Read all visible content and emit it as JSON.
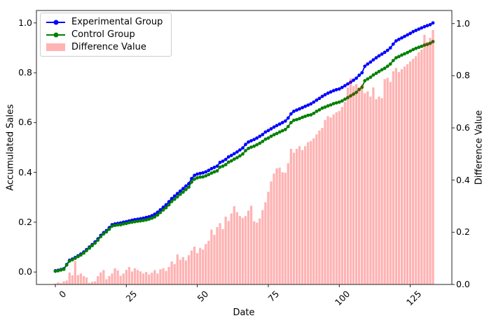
{
  "chart_data": {
    "type": "line",
    "note": "dual-axis figure: two cumulative lines on left axis, bar series on right axis; x is day index 0..133",
    "x_start": 0,
    "x_step": 1,
    "xlabel": "Date",
    "ylabel_left": "Accumulated Sales",
    "ylabel_right": "Difference Value",
    "xticks": [
      0,
      25,
      50,
      75,
      100,
      125
    ],
    "yticks_left": [
      0.0,
      0.2,
      0.4,
      0.6,
      0.8,
      1.0
    ],
    "yticks_right": [
      0.0,
      0.2,
      0.4,
      0.6,
      0.8,
      1.0
    ],
    "xlim": [
      -6.65,
      139.65
    ],
    "ylim_left": [
      -0.05,
      1.05
    ],
    "ylim_right": [
      0.0,
      1.05
    ],
    "grid": false,
    "legend_position": "upper-left",
    "series": [
      {
        "name": "Experimental Group",
        "color": "#0000ff",
        "axis": "left",
        "marker": "circle",
        "values": [
          0.005,
          0.007,
          0.01,
          0.013,
          0.03,
          0.047,
          0.052,
          0.058,
          0.065,
          0.072,
          0.08,
          0.09,
          0.1,
          0.11,
          0.121,
          0.133,
          0.147,
          0.158,
          0.166,
          0.178,
          0.19,
          0.193,
          0.195,
          0.197,
          0.2,
          0.202,
          0.205,
          0.208,
          0.21,
          0.212,
          0.214,
          0.216,
          0.219,
          0.222,
          0.226,
          0.232,
          0.24,
          0.25,
          0.26,
          0.27,
          0.282,
          0.295,
          0.305,
          0.315,
          0.325,
          0.335,
          0.345,
          0.355,
          0.375,
          0.388,
          0.393,
          0.396,
          0.398,
          0.402,
          0.408,
          0.415,
          0.42,
          0.425,
          0.44,
          0.445,
          0.452,
          0.462,
          0.468,
          0.475,
          0.482,
          0.49,
          0.498,
          0.512,
          0.522,
          0.527,
          0.532,
          0.538,
          0.545,
          0.552,
          0.562,
          0.568,
          0.575,
          0.582,
          0.588,
          0.594,
          0.6,
          0.606,
          0.618,
          0.635,
          0.645,
          0.65,
          0.655,
          0.66,
          0.665,
          0.67,
          0.675,
          0.682,
          0.69,
          0.697,
          0.705,
          0.712,
          0.718,
          0.723,
          0.728,
          0.732,
          0.735,
          0.741,
          0.748,
          0.755,
          0.762,
          0.77,
          0.778,
          0.79,
          0.8,
          0.826,
          0.835,
          0.843,
          0.852,
          0.86,
          0.868,
          0.875,
          0.882,
          0.89,
          0.9,
          0.915,
          0.928,
          0.934,
          0.94,
          0.946,
          0.952,
          0.958,
          0.965,
          0.97,
          0.975,
          0.98,
          0.985,
          0.989,
          0.993,
          1.0
        ]
      },
      {
        "name": "Control Group",
        "color": "#008000",
        "axis": "left",
        "marker": "circle",
        "values": [
          0.003,
          0.005,
          0.008,
          0.011,
          0.028,
          0.044,
          0.049,
          0.055,
          0.062,
          0.068,
          0.076,
          0.086,
          0.096,
          0.106,
          0.116,
          0.128,
          0.142,
          0.153,
          0.161,
          0.172,
          0.184,
          0.187,
          0.189,
          0.19,
          0.193,
          0.195,
          0.198,
          0.2,
          0.202,
          0.204,
          0.205,
          0.207,
          0.209,
          0.212,
          0.216,
          0.221,
          0.229,
          0.239,
          0.249,
          0.258,
          0.27,
          0.283,
          0.292,
          0.302,
          0.312,
          0.321,
          0.331,
          0.341,
          0.361,
          0.373,
          0.378,
          0.381,
          0.382,
          0.386,
          0.391,
          0.397,
          0.402,
          0.406,
          0.421,
          0.425,
          0.431,
          0.441,
          0.446,
          0.453,
          0.459,
          0.466,
          0.474,
          0.487,
          0.496,
          0.501,
          0.505,
          0.511,
          0.517,
          0.524,
          0.533,
          0.538,
          0.545,
          0.551,
          0.556,
          0.562,
          0.567,
          0.572,
          0.584,
          0.6,
          0.609,
          0.612,
          0.616,
          0.621,
          0.625,
          0.629,
          0.631,
          0.637,
          0.645,
          0.651,
          0.658,
          0.662,
          0.667,
          0.671,
          0.676,
          0.679,
          0.682,
          0.687,
          0.694,
          0.7,
          0.707,
          0.714,
          0.721,
          0.733,
          0.742,
          0.768,
          0.775,
          0.782,
          0.791,
          0.798,
          0.805,
          0.812,
          0.818,
          0.826,
          0.835,
          0.849,
          0.86,
          0.865,
          0.871,
          0.876,
          0.881,
          0.887,
          0.893,
          0.898,
          0.902,
          0.906,
          0.911,
          0.914,
          0.918,
          0.925
        ]
      }
    ],
    "bars": {
      "name": "Difference Value",
      "fill": "rgba(255,0,0,0.3)",
      "legend_color": "#ffb3b3",
      "axis": "right",
      "values": [
        0.003,
        0.008,
        0.005,
        0.012,
        0.015,
        0.046,
        0.035,
        0.09,
        0.036,
        0.042,
        0.032,
        0.027,
        0.006,
        0.01,
        0.012,
        0.032,
        0.046,
        0.055,
        0.02,
        0.032,
        0.042,
        0.062,
        0.054,
        0.033,
        0.042,
        0.056,
        0.067,
        0.05,
        0.062,
        0.055,
        0.05,
        0.042,
        0.048,
        0.038,
        0.045,
        0.055,
        0.042,
        0.058,
        0.062,
        0.052,
        0.067,
        0.088,
        0.078,
        0.115,
        0.095,
        0.105,
        0.092,
        0.112,
        0.13,
        0.145,
        0.12,
        0.14,
        0.134,
        0.155,
        0.167,
        0.21,
        0.19,
        0.22,
        0.235,
        0.212,
        0.26,
        0.243,
        0.272,
        0.3,
        0.277,
        0.262,
        0.255,
        0.262,
        0.283,
        0.302,
        0.242,
        0.237,
        0.253,
        0.285,
        0.315,
        0.355,
        0.395,
        0.425,
        0.445,
        0.448,
        0.43,
        0.428,
        0.465,
        0.52,
        0.505,
        0.52,
        0.53,
        0.515,
        0.53,
        0.545,
        0.55,
        0.56,
        0.575,
        0.59,
        0.6,
        0.63,
        0.645,
        0.64,
        0.652,
        0.66,
        0.665,
        0.68,
        0.7,
        0.755,
        0.79,
        0.76,
        0.768,
        0.755,
        0.768,
        0.733,
        0.74,
        0.72,
        0.755,
        0.71,
        0.72,
        0.714,
        0.787,
        0.792,
        0.776,
        0.817,
        0.83,
        0.814,
        0.825,
        0.835,
        0.844,
        0.855,
        0.865,
        0.875,
        0.89,
        0.9,
        0.957,
        0.93,
        0.945,
        0.975
      ]
    },
    "legend": [
      "Experimental Group",
      "Control Group",
      "Difference Value"
    ],
    "colors": {
      "experimental": "#0000ff",
      "control": "#008000",
      "difference_bar_fill": "rgba(255,0,0,0.3)",
      "difference_legend_swatch": "#ffb3b3",
      "axis_frame": "#262626",
      "legend_border": "#cccccc"
    }
  }
}
